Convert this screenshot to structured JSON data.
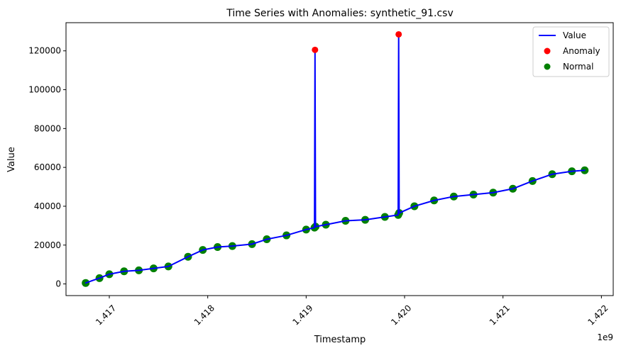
{
  "chart_data": {
    "type": "line",
    "title": "Time Series with Anomalies: synthetic_91.csv",
    "xlabel": "Timestamp",
    "ylabel": "Value",
    "x_offset_text": "1e9",
    "xlim": [
      1416560000,
      1422120000
    ],
    "ylim": [
      -6000,
      134500
    ],
    "x_ticks": [
      {
        "value": 1417000000,
        "label": "1.417"
      },
      {
        "value": 1418000000,
        "label": "1.418"
      },
      {
        "value": 1419000000,
        "label": "1.419"
      },
      {
        "value": 1420000000,
        "label": "1.420"
      },
      {
        "value": 1421000000,
        "label": "1.421"
      },
      {
        "value": 1422000000,
        "label": "1.422"
      }
    ],
    "y_ticks": [
      {
        "value": 0,
        "label": "0"
      },
      {
        "value": 20000,
        "label": "20000"
      },
      {
        "value": 40000,
        "label": "40000"
      },
      {
        "value": 60000,
        "label": "60000"
      },
      {
        "value": 80000,
        "label": "80000"
      },
      {
        "value": 100000,
        "label": "100000"
      },
      {
        "value": 120000,
        "label": "120000"
      }
    ],
    "grid": false,
    "legend_position": "top-right",
    "legend": [
      {
        "label": "Value",
        "kind": "line",
        "color": "#0000ff"
      },
      {
        "label": "Anomaly",
        "kind": "marker",
        "color": "#ff0000"
      },
      {
        "label": "Normal",
        "kind": "marker",
        "color": "#008000"
      }
    ],
    "series": [
      {
        "name": "Value",
        "kind": "line",
        "color": "#0000ff",
        "x": [
          1416760000,
          1416900000,
          1417000000,
          1417150000,
          1417300000,
          1417450000,
          1417600000,
          1417800000,
          1417950000,
          1418100000,
          1418250000,
          1418450000,
          1418600000,
          1418800000,
          1419000000,
          1419085000,
          1419090000,
          1419095000,
          1419200000,
          1419400000,
          1419600000,
          1419800000,
          1419935000,
          1419940000,
          1419945000,
          1420100000,
          1420300000,
          1420500000,
          1420700000,
          1420900000,
          1421100000,
          1421300000,
          1421500000,
          1421700000,
          1421830000
        ],
        "y": [
          500,
          3000,
          5000,
          6500,
          7000,
          8000,
          9000,
          14000,
          17500,
          19000,
          19500,
          20500,
          23000,
          25000,
          28000,
          29000,
          120500,
          29500,
          30500,
          32500,
          33000,
          34500,
          35500,
          128500,
          36500,
          40000,
          43000,
          45000,
          46000,
          47000,
          49000,
          53000,
          56500,
          58000,
          58500
        ]
      },
      {
        "name": "Anomaly",
        "kind": "scatter",
        "color": "#ff0000",
        "x": [
          1419090000,
          1419940000
        ],
        "y": [
          120500,
          128500
        ]
      },
      {
        "name": "Normal",
        "kind": "scatter",
        "color": "#008000",
        "x": [
          1416760000,
          1416900000,
          1417000000,
          1417150000,
          1417300000,
          1417450000,
          1417600000,
          1417800000,
          1417950000,
          1418100000,
          1418250000,
          1418450000,
          1418600000,
          1418800000,
          1419000000,
          1419085000,
          1419095000,
          1419200000,
          1419400000,
          1419600000,
          1419800000,
          1419935000,
          1419945000,
          1420100000,
          1420300000,
          1420500000,
          1420700000,
          1420900000,
          1421100000,
          1421300000,
          1421500000,
          1421700000,
          1421830000
        ],
        "y": [
          500,
          3000,
          5000,
          6500,
          7000,
          8000,
          9000,
          14000,
          17500,
          19000,
          19500,
          20500,
          23000,
          25000,
          28000,
          29000,
          29500,
          30500,
          32500,
          33000,
          34500,
          35500,
          36500,
          40000,
          43000,
          45000,
          46000,
          47000,
          49000,
          53000,
          56500,
          58000,
          58500
        ]
      }
    ]
  }
}
